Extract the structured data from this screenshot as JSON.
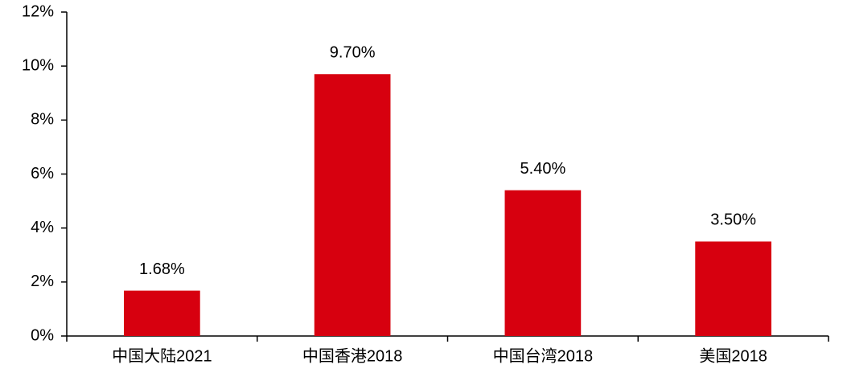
{
  "chart_data": {
    "type": "bar",
    "categories": [
      "中国大陆2021",
      "中国香港2018",
      "中国台湾2018",
      "美国2018"
    ],
    "values": [
      1.68,
      9.7,
      5.4,
      3.5
    ],
    "value_labels": [
      "1.68%",
      "9.70%",
      "5.40%",
      "3.50%"
    ],
    "color": "#d7000f",
    "ylim": [
      0,
      12
    ],
    "yticks": [
      {
        "value": 0,
        "label": "0%"
      },
      {
        "value": 2,
        "label": "2%"
      },
      {
        "value": 4,
        "label": "4%"
      },
      {
        "value": 6,
        "label": "6%"
      },
      {
        "value": 8,
        "label": "8%"
      },
      {
        "value": 10,
        "label": "10%"
      },
      {
        "value": 12,
        "label": "12%"
      }
    ],
    "grid": false
  }
}
